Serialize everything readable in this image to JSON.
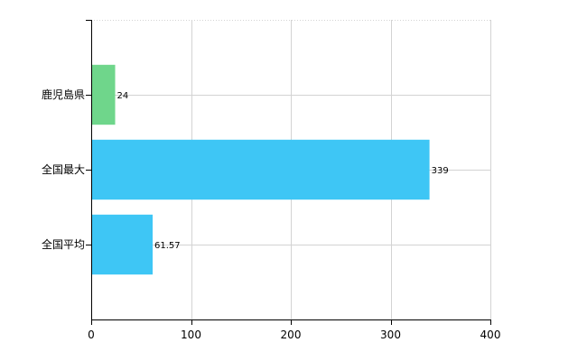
{
  "chart_data": {
    "type": "bar",
    "orientation": "horizontal",
    "categories": [
      "鹿児島県",
      "全国最大",
      "全国平均"
    ],
    "values": [
      24,
      339,
      61.57
    ],
    "data_labels": [
      "24",
      "339",
      "61.57"
    ],
    "colors": [
      "#6fd68b",
      "#3ec6f5",
      "#3ec6f5"
    ],
    "xlim": [
      0,
      400
    ],
    "x_ticks": [
      0,
      100,
      200,
      300,
      400
    ],
    "x_tick_labels": [
      "0",
      "100",
      "200",
      "300",
      "400"
    ],
    "grid": true,
    "legend": "none"
  }
}
